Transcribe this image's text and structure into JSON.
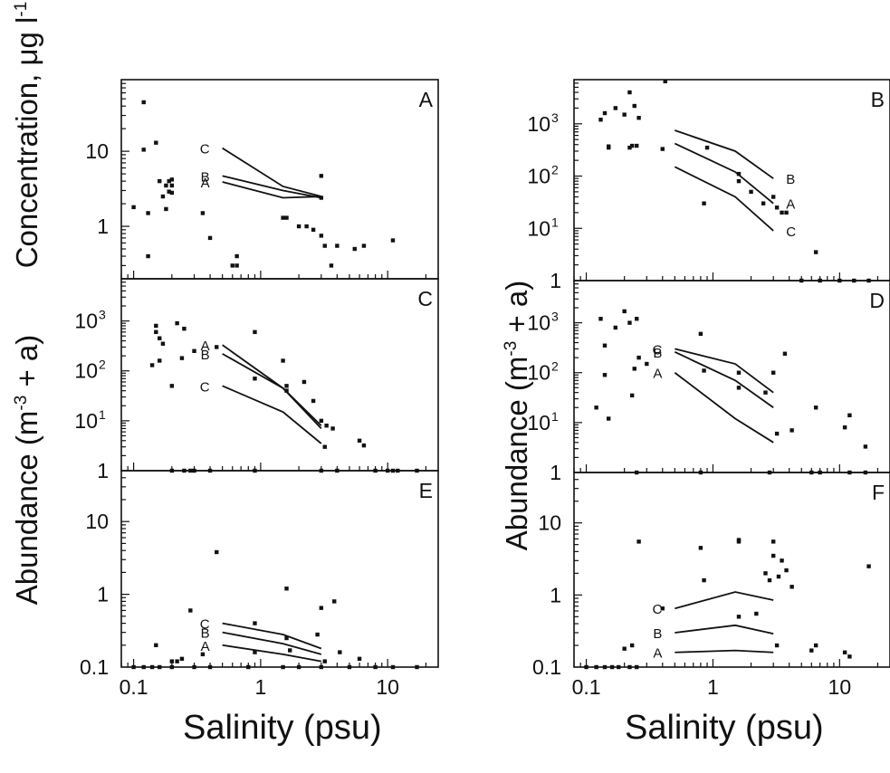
{
  "labels": {
    "y_concentration_text": "Concentration, μg l",
    "y_concentration_sup": "-1",
    "y_abundance_pre": "Abundance (m",
    "y_abundance_sup": "-3",
    "y_abundance_post": " + a)",
    "x_left": "Salinity (psu)",
    "x_right": "Salinity (psu)"
  },
  "chart_data": [
    {
      "type": "scatter",
      "panel": "A",
      "xscale": "log",
      "yscale": "log",
      "xlim": [
        0.08,
        25
      ],
      "ylim": [
        0.2,
        90
      ],
      "yticks": [
        {
          "v": 1,
          "t": "1"
        },
        {
          "v": 10,
          "t": "10"
        }
      ],
      "xticks": [],
      "points": [
        [
          0.1,
          1.8
        ],
        [
          0.12,
          45
        ],
        [
          0.12,
          10.5
        ],
        [
          0.13,
          0.4
        ],
        [
          0.13,
          1.5
        ],
        [
          0.15,
          13
        ],
        [
          0.16,
          4
        ],
        [
          0.17,
          2.5
        ],
        [
          0.18,
          1.7
        ],
        [
          0.18,
          3.5
        ],
        [
          0.19,
          2.9
        ],
        [
          0.19,
          4
        ],
        [
          0.2,
          2.8
        ],
        [
          0.2,
          3.5
        ],
        [
          0.2,
          4.2
        ],
        [
          0.35,
          1.5
        ],
        [
          0.4,
          0.7
        ],
        [
          0.6,
          0.3
        ],
        [
          0.65,
          0.3
        ],
        [
          0.65,
          0.4
        ],
        [
          1.5,
          1.3
        ],
        [
          1.6,
          1.3
        ],
        [
          2,
          1
        ],
        [
          2.3,
          1
        ],
        [
          2.6,
          0.9
        ],
        [
          3,
          4.7
        ],
        [
          3,
          2.4
        ],
        [
          3,
          0.75
        ],
        [
          3.2,
          0.55
        ],
        [
          3.6,
          0.3
        ],
        [
          4,
          0.55
        ],
        [
          5.5,
          0.5
        ],
        [
          6.5,
          0.55
        ],
        [
          11,
          0.65
        ]
      ],
      "curves": [
        {
          "label": "C",
          "x": [
            0.5,
            1.5,
            3
          ],
          "y": [
            11,
            3.4,
            2.5
          ]
        },
        {
          "label": "B",
          "x": [
            0.5,
            1.5,
            3
          ],
          "y": [
            4.7,
            3.0,
            2.4
          ]
        },
        {
          "label": "A",
          "x": [
            0.5,
            1.5,
            3
          ],
          "y": [
            3.9,
            2.4,
            2.5
          ]
        }
      ]
    },
    {
      "type": "scatter",
      "panel": "C",
      "xscale": "log",
      "yscale": "log",
      "xlim": [
        0.08,
        25
      ],
      "ylim": [
        1,
        7000
      ],
      "yticks": [
        {
          "v": 1,
          "t": "1"
        },
        {
          "v": 10,
          "t": "10",
          "sup": "1"
        },
        {
          "v": 100,
          "t": "10",
          "sup": "2"
        },
        {
          "v": 1000,
          "t": "10",
          "sup": "3"
        }
      ],
      "xticks": [],
      "points": [
        [
          0.14,
          130
        ],
        [
          0.15,
          600
        ],
        [
          0.15,
          800
        ],
        [
          0.16,
          450
        ],
        [
          0.16,
          160
        ],
        [
          0.17,
          350
        ],
        [
          0.2,
          50
        ],
        [
          0.22,
          900
        ],
        [
          0.24,
          180
        ],
        [
          0.25,
          700
        ],
        [
          0.3,
          250
        ],
        [
          0.45,
          300
        ],
        [
          0.9,
          600
        ],
        [
          0.9,
          70
        ],
        [
          1.5,
          160
        ],
        [
          1.6,
          50
        ],
        [
          1.6,
          40
        ],
        [
          2.2,
          60
        ],
        [
          2.6,
          25
        ],
        [
          3,
          10
        ],
        [
          3.2,
          3
        ],
        [
          3.3,
          8
        ],
        [
          3.7,
          7
        ],
        [
          6,
          4
        ],
        [
          6.5,
          3.2
        ],
        [
          0.2,
          1
        ],
        [
          0.25,
          1
        ],
        [
          0.28,
          1
        ],
        [
          0.3,
          1
        ],
        [
          0.4,
          1
        ],
        [
          0.9,
          1
        ],
        [
          3,
          1
        ],
        [
          4,
          1
        ],
        [
          8,
          1
        ],
        [
          10,
          1
        ],
        [
          11,
          1
        ],
        [
          12,
          1
        ],
        [
          17,
          1
        ]
      ],
      "curves": [
        {
          "label": "A",
          "x": [
            0.5,
            1.5,
            3
          ],
          "y": [
            330,
            45,
            7
          ]
        },
        {
          "label": "B",
          "x": [
            0.5,
            1.5,
            3
          ],
          "y": [
            220,
            45,
            8
          ]
        },
        {
          "label": "C",
          "x": [
            0.5,
            1.5,
            3
          ],
          "y": [
            50,
            15,
            3.5
          ]
        }
      ]
    },
    {
      "type": "scatter",
      "panel": "E",
      "xscale": "log",
      "yscale": "log",
      "xlim": [
        0.08,
        25
      ],
      "ylim": [
        0.1,
        50
      ],
      "yticks": [
        {
          "v": 0.1,
          "t": "0.1"
        },
        {
          "v": 1,
          "t": "1"
        },
        {
          "v": 10,
          "t": "10"
        }
      ],
      "xticks": [
        {
          "v": 0.1,
          "t": "0.1"
        },
        {
          "v": 1,
          "t": "1"
        },
        {
          "v": 10,
          "t": "10"
        }
      ],
      "points": [
        [
          0.15,
          0.2
        ],
        [
          0.2,
          0.12
        ],
        [
          0.22,
          0.12
        ],
        [
          0.24,
          0.13
        ],
        [
          0.28,
          0.6
        ],
        [
          0.35,
          0.15
        ],
        [
          0.45,
          3.8
        ],
        [
          0.9,
          0.4
        ],
        [
          0.9,
          0.16
        ],
        [
          1.6,
          1.2
        ],
        [
          1.6,
          0.25
        ],
        [
          1.7,
          0.17
        ],
        [
          2.8,
          0.28
        ],
        [
          3,
          0.65
        ],
        [
          3.2,
          0.12
        ],
        [
          3.8,
          0.8
        ],
        [
          4.2,
          0.16
        ],
        [
          6,
          0.13
        ],
        [
          0.1,
          0.1
        ],
        [
          0.12,
          0.1
        ],
        [
          0.14,
          0.1
        ],
        [
          0.16,
          0.1
        ],
        [
          0.2,
          0.1
        ],
        [
          0.3,
          0.1
        ],
        [
          0.4,
          0.1
        ],
        [
          0.8,
          0.1
        ],
        [
          1.5,
          0.1
        ],
        [
          2,
          0.1
        ],
        [
          3,
          0.1
        ],
        [
          5,
          0.1
        ],
        [
          8,
          0.1
        ],
        [
          11,
          0.1
        ],
        [
          17,
          0.1
        ]
      ],
      "curves": [
        {
          "label": "C",
          "x": [
            0.5,
            1.5,
            3
          ],
          "y": [
            0.4,
            0.28,
            0.18
          ]
        },
        {
          "label": "B",
          "x": [
            0.5,
            1.5,
            3
          ],
          "y": [
            0.3,
            0.21,
            0.15
          ]
        },
        {
          "label": "A",
          "x": [
            0.5,
            1.5,
            3
          ],
          "y": [
            0.2,
            0.15,
            0.12
          ]
        }
      ]
    },
    {
      "type": "scatter",
      "panel": "B",
      "xscale": "log",
      "yscale": "log",
      "xlim": [
        0.08,
        25
      ],
      "ylim": [
        1,
        7000
      ],
      "yticks": [
        {
          "v": 1,
          "t": "1"
        },
        {
          "v": 10,
          "t": "10",
          "sup": "1"
        },
        {
          "v": 100,
          "t": "10",
          "sup": "2"
        },
        {
          "v": 1000,
          "t": "10",
          "sup": "3"
        }
      ],
      "xticks": [],
      "points": [
        [
          0.13,
          1200
        ],
        [
          0.14,
          1600
        ],
        [
          0.15,
          370
        ],
        [
          0.15,
          350
        ],
        [
          0.17,
          2000
        ],
        [
          0.2,
          1500
        ],
        [
          0.22,
          4000
        ],
        [
          0.22,
          350
        ],
        [
          0.23,
          380
        ],
        [
          0.24,
          2200
        ],
        [
          0.25,
          380
        ],
        [
          0.26,
          1300
        ],
        [
          0.42,
          6500
        ],
        [
          0.4,
          330
        ],
        [
          0.85,
          30
        ],
        [
          0.9,
          350
        ],
        [
          1.6,
          110
        ],
        [
          1.6,
          80
        ],
        [
          2,
          50
        ],
        [
          2.5,
          30
        ],
        [
          3,
          40
        ],
        [
          3.2,
          25
        ],
        [
          3.5,
          20
        ],
        [
          3.8,
          20
        ],
        [
          6.5,
          3.5
        ],
        [
          5,
          1
        ],
        [
          7,
          1
        ],
        [
          10,
          1
        ],
        [
          13,
          1
        ],
        [
          17,
          1
        ]
      ],
      "curves": [
        {
          "label": "B",
          "x": [
            0.5,
            1.5,
            3
          ],
          "y": [
            750,
            300,
            90
          ]
        },
        {
          "label": "A",
          "x": [
            0.5,
            1.5,
            3
          ],
          "y": [
            420,
            120,
            30
          ]
        },
        {
          "label": "C",
          "x": [
            0.5,
            1.5,
            3
          ],
          "y": [
            150,
            40,
            9
          ]
        }
      ]
    },
    {
      "type": "scatter",
      "panel": "D",
      "xscale": "log",
      "yscale": "log",
      "xlim": [
        0.08,
        25
      ],
      "ylim": [
        1,
        7000
      ],
      "yticks": [
        {
          "v": 1,
          "t": "1"
        },
        {
          "v": 10,
          "t": "10",
          "sup": "1"
        },
        {
          "v": 100,
          "t": "10",
          "sup": "2"
        },
        {
          "v": 1000,
          "t": "10",
          "sup": "3"
        }
      ],
      "xticks": [],
      "points": [
        [
          0.12,
          20
        ],
        [
          0.13,
          1200
        ],
        [
          0.14,
          350
        ],
        [
          0.14,
          90
        ],
        [
          0.15,
          12
        ],
        [
          0.17,
          800
        ],
        [
          0.2,
          1700
        ],
        [
          0.22,
          1000
        ],
        [
          0.23,
          35
        ],
        [
          0.24,
          120
        ],
        [
          0.25,
          1200
        ],
        [
          0.26,
          200
        ],
        [
          0.3,
          150
        ],
        [
          0.8,
          600
        ],
        [
          0.85,
          110
        ],
        [
          1.6,
          100
        ],
        [
          1.6,
          50
        ],
        [
          2.6,
          40
        ],
        [
          3,
          100
        ],
        [
          3.2,
          6
        ],
        [
          3.7,
          240
        ],
        [
          4.2,
          7
        ],
        [
          6.5,
          20
        ],
        [
          11,
          8
        ],
        [
          12,
          14
        ],
        [
          16,
          3.3
        ],
        [
          0.25,
          1
        ],
        [
          0.8,
          1
        ],
        [
          2.8,
          1
        ],
        [
          6,
          1
        ],
        [
          7,
          1
        ],
        [
          12,
          1
        ],
        [
          16,
          1
        ]
      ],
      "curves": [
        {
          "label": "C",
          "x": [
            0.5,
            1.5,
            3
          ],
          "y": [
            300,
            150,
            40
          ]
        },
        {
          "label": "B",
          "x": [
            0.5,
            1.5,
            3
          ],
          "y": [
            260,
            70,
            20
          ]
        },
        {
          "label": "A",
          "x": [
            0.5,
            1.5,
            3
          ],
          "y": [
            100,
            12,
            4
          ]
        }
      ]
    },
    {
      "type": "scatter",
      "panel": "F",
      "xscale": "log",
      "yscale": "log",
      "xlim": [
        0.08,
        25
      ],
      "ylim": [
        0.1,
        50
      ],
      "yticks": [
        {
          "v": 0.1,
          "t": "0.1"
        },
        {
          "v": 1,
          "t": "1"
        },
        {
          "v": 10,
          "t": "10"
        }
      ],
      "xticks": [
        {
          "v": 0.1,
          "t": "0.1"
        },
        {
          "v": 1,
          "t": "1"
        },
        {
          "v": 10,
          "t": "10"
        }
      ],
      "points": [
        [
          0.2,
          0.18
        ],
        [
          0.23,
          0.2
        ],
        [
          0.26,
          5.5
        ],
        [
          0.4,
          0.65
        ],
        [
          0.8,
          4.5
        ],
        [
          0.85,
          1.6
        ],
        [
          1.6,
          5.5
        ],
        [
          1.6,
          5.8
        ],
        [
          1.6,
          0.5
        ],
        [
          2.2,
          0.55
        ],
        [
          2.6,
          2
        ],
        [
          2.8,
          1.6
        ],
        [
          3,
          5.5
        ],
        [
          3,
          3.5
        ],
        [
          3.2,
          0.2
        ],
        [
          3.3,
          1.8
        ],
        [
          3.5,
          3
        ],
        [
          3.8,
          2.2
        ],
        [
          4.2,
          1.3
        ],
        [
          6.5,
          0.2
        ],
        [
          6,
          0.17
        ],
        [
          11,
          0.16
        ],
        [
          12,
          0.14
        ],
        [
          17,
          2.5
        ],
        [
          0.1,
          0.1
        ],
        [
          0.12,
          0.1
        ],
        [
          0.14,
          0.1
        ],
        [
          0.16,
          0.1
        ],
        [
          0.18,
          0.1
        ],
        [
          0.22,
          0.1
        ],
        [
          0.25,
          0.1
        ]
      ],
      "curves": [
        {
          "label": "C",
          "x": [
            0.5,
            1.5,
            3
          ],
          "y": [
            0.65,
            1.1,
            0.85
          ]
        },
        {
          "label": "B",
          "x": [
            0.5,
            1.5,
            3
          ],
          "y": [
            0.3,
            0.38,
            0.29
          ]
        },
        {
          "label": "A",
          "x": [
            0.5,
            1.5,
            3
          ],
          "y": [
            0.16,
            0.17,
            0.16
          ]
        }
      ]
    }
  ]
}
